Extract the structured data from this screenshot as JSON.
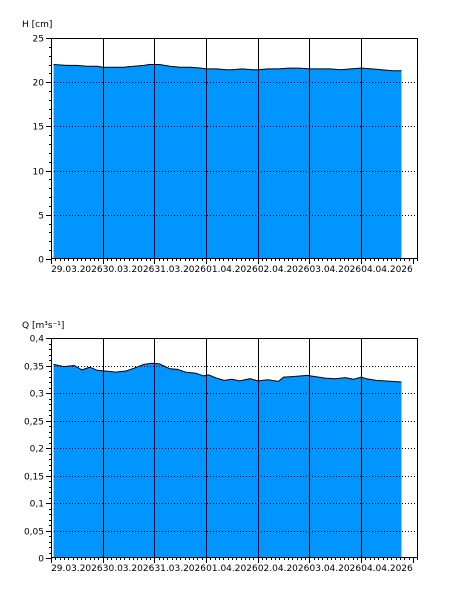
{
  "colors": {
    "fill": "#0095ff",
    "outline": "#000000",
    "background": "#ffffff",
    "grid": "#000000"
  },
  "chart_data": [
    {
      "type": "area",
      "ylabel": "H [cm]",
      "ylim": [
        0,
        25
      ],
      "yticks": [
        0,
        5,
        10,
        15,
        20,
        25
      ],
      "ytick_labels": [
        "0",
        "5",
        "10",
        "15",
        "20",
        "25"
      ],
      "y_minor_step": 1,
      "xlim": [
        0,
        7.1
      ],
      "xticks": [
        0.5,
        1.5,
        2.5,
        3.5,
        4.5,
        5.5,
        6.5
      ],
      "xtick_labels": [
        "29.03.2026",
        "30.03.2026",
        "31.03.2026",
        "01.04.2026",
        "02.04.2026",
        "03.04.2026",
        "04.04.2026"
      ],
      "day_lines": [
        1,
        2,
        3,
        4,
        5,
        6
      ],
      "grid": "dotted horizontal at major ticks",
      "x": [
        0.05,
        0.3,
        0.5,
        0.7,
        0.9,
        1.0,
        1.2,
        1.4,
        1.6,
        1.8,
        1.9,
        2.1,
        2.3,
        2.5,
        2.7,
        2.9,
        3.0,
        3.2,
        3.4,
        3.5,
        3.7,
        3.9,
        4.0,
        4.2,
        4.4,
        4.6,
        4.8,
        5.0,
        5.2,
        5.4,
        5.6,
        5.8,
        6.0,
        6.2,
        6.4,
        6.6,
        6.78
      ],
      "values": [
        22.0,
        21.9,
        21.9,
        21.8,
        21.8,
        21.7,
        21.7,
        21.7,
        21.8,
        21.9,
        22.0,
        22.0,
        21.8,
        21.7,
        21.7,
        21.6,
        21.5,
        21.5,
        21.4,
        21.4,
        21.5,
        21.4,
        21.4,
        21.5,
        21.5,
        21.6,
        21.6,
        21.5,
        21.5,
        21.5,
        21.4,
        21.5,
        21.6,
        21.5,
        21.4,
        21.3,
        21.3
      ]
    },
    {
      "type": "area",
      "ylabel": "Q [m³s⁻¹]",
      "ylim": [
        0,
        0.4
      ],
      "yticks": [
        0,
        0.05,
        0.1,
        0.15,
        0.2,
        0.25,
        0.3,
        0.35,
        0.4
      ],
      "ytick_labels": [
        "0",
        "0,05",
        "0,1",
        "0,15",
        "0,2",
        "0,25",
        "0,3",
        "0,35",
        "0,4"
      ],
      "y_minor_step": 0.01,
      "xlim": [
        0,
        7.1
      ],
      "xticks": [
        0.5,
        1.5,
        2.5,
        3.5,
        4.5,
        5.5,
        6.5
      ],
      "xtick_labels": [
        "29.03.2026",
        "30.03.2026",
        "31.03.2026",
        "01.04.2026",
        "02.04.2026",
        "03.04.2026",
        "04.04.2026"
      ],
      "day_lines": [
        1,
        2,
        3,
        4,
        5,
        6
      ],
      "grid": "dotted horizontal at major ticks",
      "x": [
        0.05,
        0.25,
        0.45,
        0.6,
        0.75,
        0.9,
        1.05,
        1.25,
        1.45,
        1.6,
        1.8,
        1.95,
        2.1,
        2.3,
        2.45,
        2.6,
        2.8,
        2.95,
        3.05,
        3.2,
        3.35,
        3.5,
        3.65,
        3.85,
        4.0,
        4.2,
        4.4,
        4.5,
        4.7,
        4.95,
        5.1,
        5.3,
        5.5,
        5.7,
        5.85,
        6.0,
        6.1,
        6.3,
        6.45,
        6.6,
        6.78
      ],
      "values": [
        0.352,
        0.348,
        0.35,
        0.342,
        0.347,
        0.341,
        0.34,
        0.338,
        0.34,
        0.345,
        0.352,
        0.354,
        0.353,
        0.344,
        0.343,
        0.338,
        0.336,
        0.331,
        0.333,
        0.327,
        0.323,
        0.325,
        0.322,
        0.326,
        0.322,
        0.324,
        0.321,
        0.329,
        0.33,
        0.332,
        0.33,
        0.327,
        0.326,
        0.328,
        0.325,
        0.329,
        0.326,
        0.323,
        0.322,
        0.321,
        0.32
      ]
    }
  ]
}
